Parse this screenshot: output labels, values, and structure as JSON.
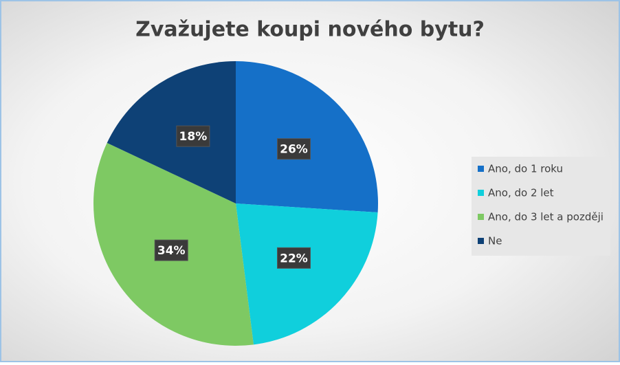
{
  "chart_data": {
    "type": "pie",
    "title": "Zvažujete koupi nového bytu?",
    "categories": [
      "Ano, do 1 roku",
      "Ano, do 2 let",
      "Ano, do 3 let a později",
      "Ne"
    ],
    "values": [
      26,
      22,
      34,
      18
    ],
    "value_labels": [
      "26%",
      "22%",
      "34%",
      "18%"
    ],
    "colors": [
      "#1570c8",
      "#10cfdc",
      "#7ec963",
      "#0e4176"
    ],
    "legend": "right"
  }
}
